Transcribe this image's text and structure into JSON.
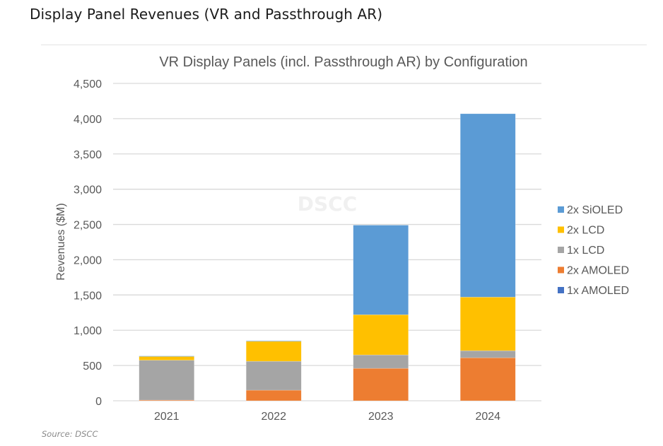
{
  "page": {
    "heading": "Display Panel Revenues (VR and Passthrough AR)",
    "source": "Source: DSCC"
  },
  "chart_data": {
    "type": "bar",
    "stacked": true,
    "title": "VR Display Panels (incl. Passthrough AR) by Configuration",
    "xlabel": "",
    "ylabel": "Revenues ($M)",
    "ylim": [
      0,
      4500
    ],
    "yticks": [
      0,
      500,
      1000,
      1500,
      2000,
      2500,
      3000,
      3500,
      4000,
      4500
    ],
    "ytick_labels": [
      "0",
      "500",
      "1,000",
      "1,500",
      "2,000",
      "2,500",
      "3,000",
      "3,500",
      "4,000",
      "4,500"
    ],
    "grid": true,
    "legend_position": "right",
    "watermark": "DSCC",
    "categories": [
      "2021",
      "2022",
      "2023",
      "2024"
    ],
    "series": [
      {
        "name": "1x AMOLED",
        "color": "#4472C4",
        "values": [
          0,
          0,
          0,
          0
        ]
      },
      {
        "name": "2x AMOLED",
        "color": "#ED7D31",
        "values": [
          10,
          150,
          460,
          610
        ]
      },
      {
        "name": "1x LCD",
        "color": "#A5A5A5",
        "values": [
          565,
          410,
          190,
          100
        ]
      },
      {
        "name": "2x LCD",
        "color": "#FFC000",
        "values": [
          55,
          285,
          570,
          760
        ]
      },
      {
        "name": "2x SiOLED",
        "color": "#5B9BD5",
        "values": [
          5,
          5,
          1270,
          2600
        ]
      }
    ],
    "legend_order": [
      "2x SiOLED",
      "2x LCD",
      "1x LCD",
      "2x AMOLED",
      "1x AMOLED"
    ]
  }
}
